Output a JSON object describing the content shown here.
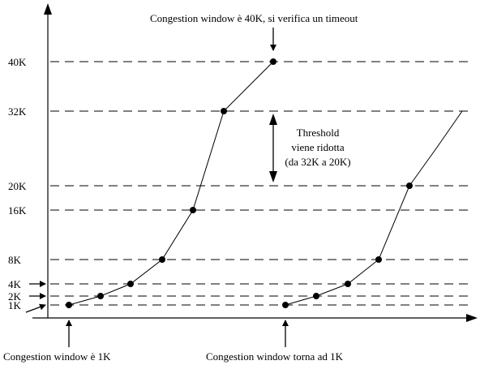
{
  "chart_data": {
    "type": "line",
    "title": "",
    "xlabel": "",
    "ylabel": "",
    "y_unit": "K",
    "yticks": [
      {
        "value": 1,
        "label": "1K"
      },
      {
        "value": 2,
        "label": "2K"
      },
      {
        "value": 4,
        "label": "4K"
      },
      {
        "value": 8,
        "label": "8K"
      },
      {
        "value": 16,
        "label": "16K"
      },
      {
        "value": 20,
        "label": "20K"
      },
      {
        "value": 32,
        "label": "32K"
      },
      {
        "value": 40,
        "label": "40K"
      }
    ],
    "grid": "dashed horizontal lines at every y tick",
    "series": [
      {
        "x": [
          1,
          2,
          3,
          4,
          5,
          6,
          7
        ],
        "values": [
          1,
          2,
          4,
          8,
          16,
          32,
          40
        ]
      },
      {
        "x": [
          8,
          9,
          10,
          11,
          12,
          13,
          14
        ],
        "values": [
          1,
          2,
          4,
          8,
          20,
          26,
          32
        ],
        "markers": [
          true,
          true,
          true,
          true,
          true,
          false,
          false
        ]
      }
    ],
    "annotations": [
      {
        "text": "Congestion window è 40K, si verifica un timeout",
        "position": "top, arrow down to the 40K point"
      },
      {
        "lines": [
          "Threshold",
          "viene ridotta",
          "(da 32K a 20K)"
        ],
        "position": "double arrow between 32K and 20K"
      },
      {
        "text": "Congestion window è  1K",
        "position": "bottom-left, arrow up to the first point"
      },
      {
        "text": "Congestion window torna ad 1K",
        "position": "bottom-center, arrow up to the restart point"
      }
    ]
  }
}
